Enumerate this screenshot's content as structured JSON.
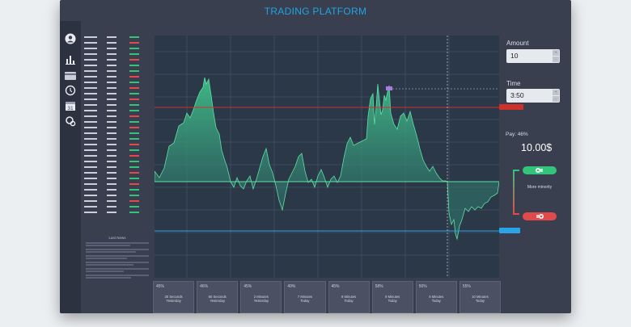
{
  "app": {
    "title": "TRADING PLATFORM"
  },
  "colors": {
    "accent": "#1ea6e0",
    "up": "#34c37a",
    "down": "#e04a4a",
    "chart_fill": "#3fbf88",
    "line_red": "#d0302a",
    "line_blue": "#2aa4e6"
  },
  "rail": {
    "icons": [
      {
        "name": "user-icon"
      },
      {
        "name": "bar-chart-icon"
      },
      {
        "name": "card-icon"
      },
      {
        "name": "clock-icon"
      },
      {
        "name": "calendar-icon",
        "label": "31"
      },
      {
        "name": "settings-icon"
      }
    ]
  },
  "quotes": {
    "rows": [
      {
        "d": "up"
      },
      {
        "d": "dn"
      },
      {
        "d": "up"
      },
      {
        "d": "up"
      },
      {
        "d": "dn"
      },
      {
        "d": "up"
      },
      {
        "d": "up"
      },
      {
        "d": "dn"
      },
      {
        "d": "up"
      },
      {
        "d": "dn"
      },
      {
        "d": "up"
      },
      {
        "d": "dn"
      },
      {
        "d": "up"
      },
      {
        "d": "up"
      },
      {
        "d": "dn"
      },
      {
        "d": "up"
      },
      {
        "d": "dn"
      },
      {
        "d": "up"
      },
      {
        "d": "up"
      },
      {
        "d": "dn"
      },
      {
        "d": "up"
      },
      {
        "d": "dn"
      },
      {
        "d": "up"
      },
      {
        "d": "up"
      },
      {
        "d": "dn"
      },
      {
        "d": "up"
      },
      {
        "d": "dn"
      },
      {
        "d": "up"
      },
      {
        "d": "up"
      },
      {
        "d": "dn"
      },
      {
        "d": "up"
      },
      {
        "d": "up"
      }
    ]
  },
  "news": {
    "heading": "Last News"
  },
  "chart": {
    "time_labels": [
      "",
      "",
      "",
      "",
      "",
      "",
      "",
      ""
    ]
  },
  "tiles": [
    {
      "pct": "45%",
      "label_line1": "30 Seconds",
      "label_line2": "Yesterday"
    },
    {
      "pct": "46%",
      "label_line1": "60 Seconds",
      "label_line2": "Yesterday"
    },
    {
      "pct": "45%",
      "label_line1": "2 Minutes",
      "label_line2": "Yesterday"
    },
    {
      "pct": "49%",
      "label_line1": "7 Minutes",
      "label_line2": "Today"
    },
    {
      "pct": "45%",
      "label_line1": "9 Minutes",
      "label_line2": "Today"
    },
    {
      "pct": "58%",
      "label_line1": "9 Minutes",
      "label_line2": "Today"
    },
    {
      "pct": "50%",
      "label_line1": "9 Minutes",
      "label_line2": "Today"
    },
    {
      "pct": "55%",
      "label_line1": "10 Minutes",
      "label_line2": "Today"
    }
  ],
  "side": {
    "amount_label": "Amount",
    "amount_value": "10",
    "time_label": "Time",
    "time_value": "3:50",
    "pay_label": "Pay: 46%",
    "pay_value": "10.00$",
    "more_minority": "More minority",
    "spin_up": "+",
    "spin_down": "-"
  }
}
